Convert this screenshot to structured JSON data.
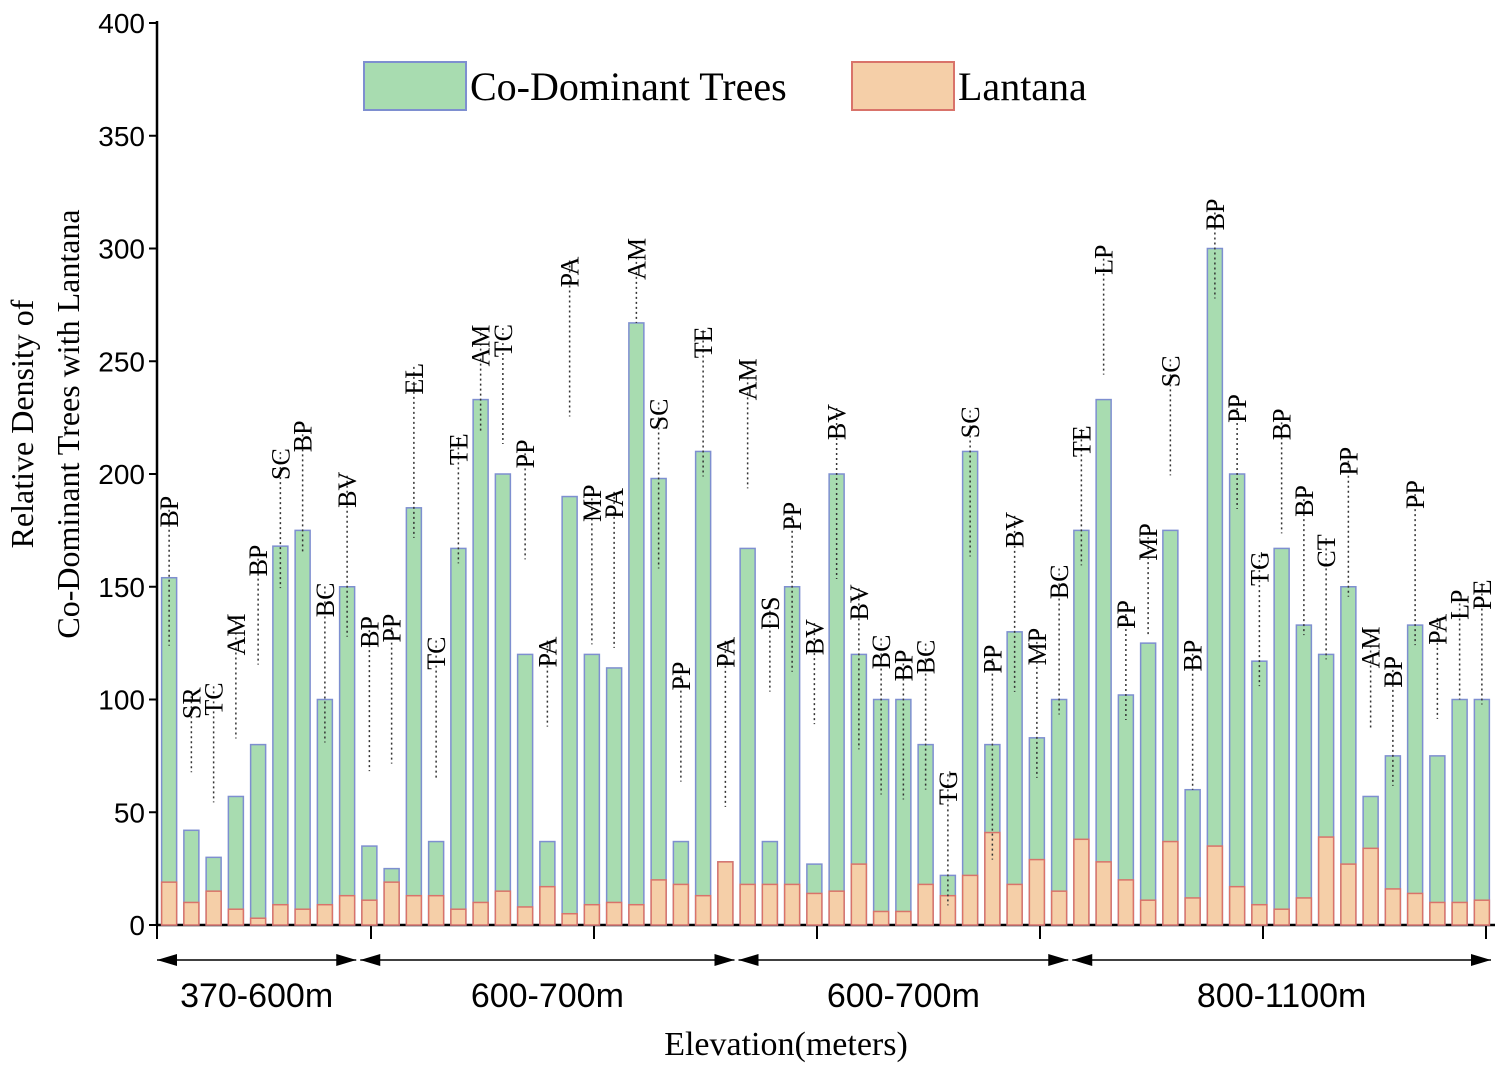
{
  "chart_data": {
    "type": "bar",
    "title": "",
    "ylabel": [
      "Relative Density of",
      "Co-Dominant Trees with Lantana"
    ],
    "xlabel": "Elevation(meters)",
    "ylim": [
      0,
      400
    ],
    "yticks": [
      0,
      50,
      100,
      150,
      200,
      250,
      300,
      350,
      400
    ],
    "legend": {
      "position": "top-center",
      "entries": [
        "Co-Dominant Trees",
        "Lantana"
      ]
    },
    "colors": {
      "trees_fill": "#a8dcb0",
      "trees_edge": "#7e8fd0",
      "lantana_fill": "#f5cfa8",
      "lantana_edge": "#d9736a",
      "axis": "#000000"
    },
    "groups": [
      {
        "label": "370-600m",
        "start": 0,
        "end": 8
      },
      {
        "label": "600-700m",
        "start": 9,
        "end": 25
      },
      {
        "label": "600-700m",
        "start": 26,
        "end": 40
      },
      {
        "label": "800-1100m",
        "start": 41,
        "end": 60
      }
    ],
    "categories": [
      "BP",
      "SR",
      "TC",
      "AM",
      "BP",
      "SC",
      "BP",
      "BC",
      "BV",
      "BP",
      "PP",
      "EL",
      "TC",
      "TE",
      "AM",
      "TC",
      "PP",
      "PA",
      "PA",
      "MP",
      "PA",
      "AM",
      "SC",
      "PP",
      "TE",
      "PA",
      "AM",
      "DS",
      "PP",
      "BV",
      "BV",
      "BV",
      "BC",
      "BP",
      "BC",
      "TG",
      "SC",
      "PP",
      "BV",
      "MP",
      "BC",
      "TE",
      "LP",
      "PP",
      "MP",
      "SC",
      "BP",
      "BP",
      "PP",
      "TG",
      "BP",
      "BP",
      "CT",
      "PP",
      "AM",
      "BP",
      "PP",
      "PA",
      "LP",
      "PE"
    ],
    "series": [
      {
        "name": "Co-Dominant Trees",
        "values": [
          154,
          42,
          30,
          57,
          80,
          168,
          175,
          100,
          150,
          35,
          25,
          185,
          37,
          167,
          233,
          200,
          120,
          37,
          190,
          120,
          114,
          267,
          198,
          37,
          210,
          28,
          167,
          37,
          150,
          27,
          200,
          120,
          100,
          100,
          80,
          22,
          210,
          80,
          130,
          83,
          100,
          175,
          233,
          102,
          125,
          175,
          60,
          300,
          200,
          117,
          167,
          133,
          120,
          150,
          57,
          75,
          133,
          75,
          100,
          100
        ]
      },
      {
        "name": "Lantana",
        "values": [
          19,
          10,
          15,
          7,
          3,
          9,
          7,
          9,
          13,
          11,
          19,
          13,
          13,
          7,
          10,
          15,
          8,
          17,
          5,
          9,
          10,
          9,
          20,
          18,
          13,
          28,
          18,
          18,
          18,
          14,
          15,
          27,
          6,
          6,
          18,
          13,
          22,
          41,
          18,
          29,
          15,
          38,
          28,
          20,
          11,
          37,
          12,
          35,
          17,
          9,
          7,
          12,
          39,
          27,
          34,
          16,
          14,
          10,
          10,
          11
        ]
      }
    ],
    "label_offsets": [
      82,
      143,
      175,
      183,
      200,
      98,
      110,
      117,
      115,
      230,
      255,
      145,
      205,
      115,
      75,
      150,
      215,
      205,
      240,
      170,
      180,
      85,
      80,
      180,
      125,
      225,
      190,
      245,
      85,
      245,
      70,
      70,
      65,
      50,
      105,
      105,
      45,
      100,
      120,
      110,
      135,
      105,
      155,
      95,
      120,
      175,
      150,
      50,
      80,
      110,
      140,
      140,
      120,
      140,
      170,
      100,
      145,
      142,
      110,
      120
    ],
    "label_lengths": [
      150,
      85,
      120,
      125,
      120,
      140,
      132,
      160,
      165,
      155,
      150,
      175,
      142,
      130,
      108,
      120,
      120,
      90,
      160,
      160,
      160,
      85,
      170,
      120,
      150,
      170,
      130,
      95,
      170,
      105,
      175,
      165,
      160,
      150,
      150,
      135,
      150,
      215,
      180,
      150,
      150,
      140,
      130,
      120,
      112,
      120,
      150,
      100,
      115,
      135,
      125,
      150,
      125,
      150,
      104,
      130,
      165,
      105,
      110,
      125
    ]
  }
}
